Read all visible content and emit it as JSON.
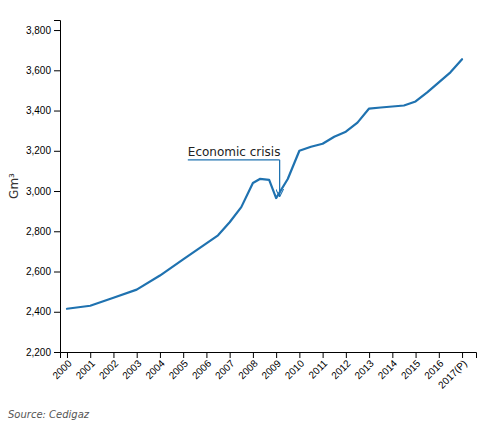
{
  "chart_data": {
    "type": "line",
    "x": [
      2000,
      2001,
      2002,
      2003,
      2004,
      2005,
      2006,
      2006.5,
      2007,
      2007.5,
      2008,
      2008.3,
      2008.7,
      2009,
      2009.5,
      2010,
      2010.5,
      2011,
      2011.5,
      2012,
      2012.5,
      2013,
      2013.5,
      2014,
      2014.5,
      2015,
      2015.5,
      2016,
      2016.5,
      2017
    ],
    "values": [
      2415,
      2430,
      2470,
      2510,
      2580,
      2660,
      2740,
      2780,
      2845,
      2920,
      3040,
      3060,
      3055,
      2965,
      3060,
      3200,
      3220,
      3235,
      3270,
      3295,
      3340,
      3410,
      3415,
      3420,
      3425,
      3445,
      3490,
      3540,
      3590,
      3655
    ],
    "color": "#1f72b0",
    "xlim": [
      1999.7,
      2017.6
    ],
    "xticks": [
      2000,
      2001,
      2002,
      2003,
      2004,
      2005,
      2006,
      2007,
      2008,
      2009,
      2010,
      2011,
      2012,
      2013,
      2014,
      2015,
      2016,
      {
        "value": 2017,
        "label": "2017(P)"
      }
    ],
    "ylim": [
      2200,
      3850
    ],
    "yticks": [
      {
        "value": 2200,
        "label": "2,200"
      },
      {
        "value": 2400,
        "label": "2,400"
      },
      {
        "value": 2600,
        "label": "2,600"
      },
      {
        "value": 2800,
        "label": "2,800"
      },
      {
        "value": 3000,
        "label": "3,000"
      },
      {
        "value": 3200,
        "label": "3,200"
      },
      {
        "value": 3400,
        "label": "3,400"
      },
      {
        "value": 3600,
        "label": "3,600"
      },
      {
        "value": 3800,
        "label": "3,800"
      }
    ],
    "y_label": "Gm³",
    "annotations": [
      {
        "text": "Economic crisis",
        "x": 2009.15,
        "y": 2975,
        "text_x": 2005.2,
        "text_y": 3155
      }
    ],
    "source": "Source: Cedigaz",
    "grid": false
  }
}
